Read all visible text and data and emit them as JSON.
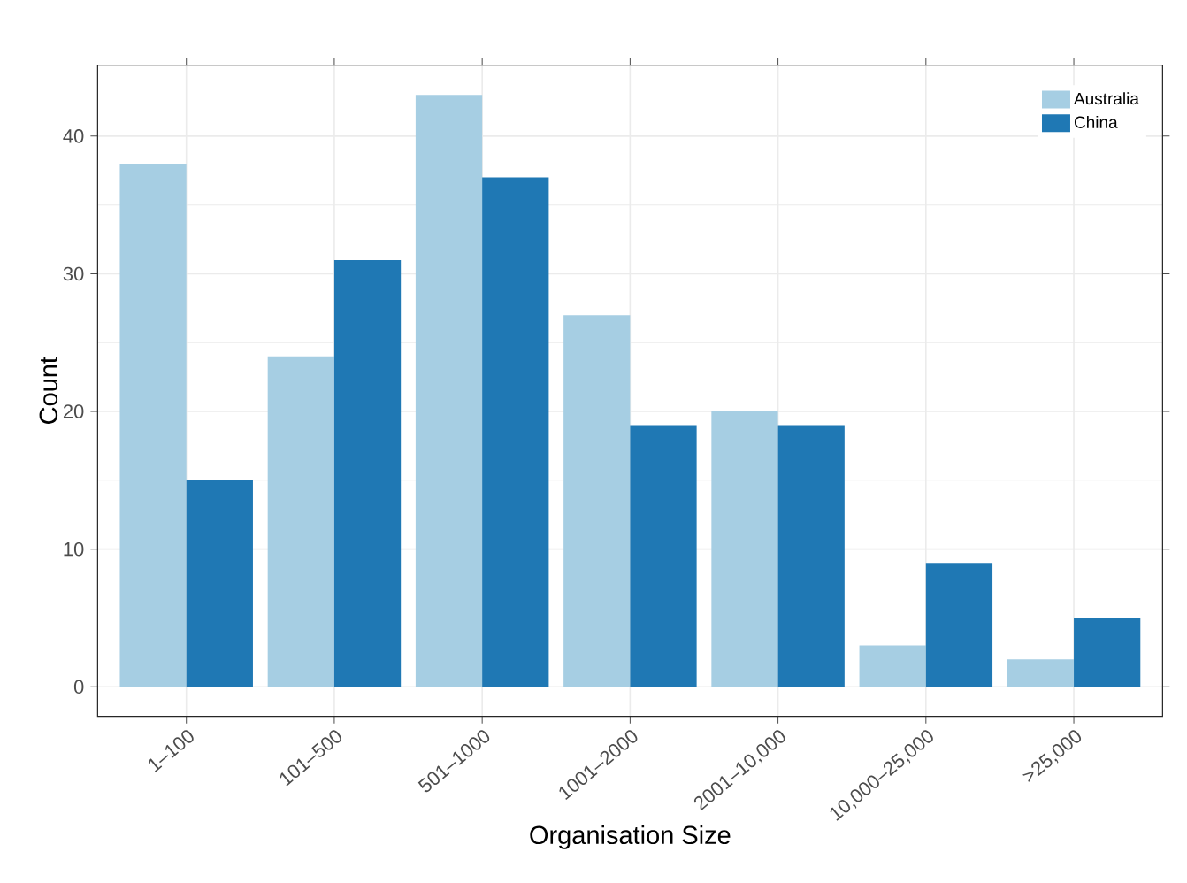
{
  "chart_data": {
    "type": "bar",
    "xlabel": "Organisation Size",
    "ylabel": "Count",
    "categories": [
      "1–100",
      "101–500",
      "501–1000",
      "1001–2000",
      "2001–10,000",
      "10,000–25,000",
      ">25,000"
    ],
    "series": [
      {
        "name": "Australia",
        "color": "#a6cee3",
        "values": [
          38,
          24,
          43,
          27,
          20,
          3,
          2
        ]
      },
      {
        "name": "China",
        "color": "#1f78b4",
        "values": [
          15,
          31,
          37,
          19,
          19,
          9,
          5
        ]
      }
    ],
    "ylim": [
      -2.15,
      45.15
    ],
    "yticks": [
      0,
      10,
      20,
      30,
      40
    ],
    "grid": true,
    "legend": "top right"
  }
}
